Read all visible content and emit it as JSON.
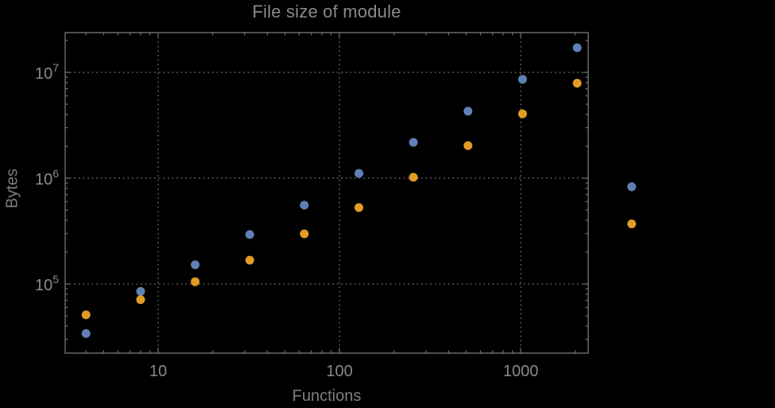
{
  "chart_data": {
    "type": "scatter",
    "title": "File size of module",
    "xlabel": "Functions",
    "ylabel": "Bytes",
    "xscale": "log",
    "yscale": "log",
    "xlim": [
      3.07,
      2357
    ],
    "ylim": [
      22200,
      23760000
    ],
    "grid": true,
    "grid_style": "dotted",
    "legend": false,
    "x_ticks": [
      {
        "value": 10,
        "label": "10"
      },
      {
        "value": 100,
        "label": "100"
      },
      {
        "value": 1000,
        "label": "1000"
      }
    ],
    "y_ticks": [
      {
        "value": 100000,
        "base": "10",
        "exponent": "5"
      },
      {
        "value": 1000000,
        "base": "10",
        "exponent": "6"
      },
      {
        "value": 10000000,
        "base": "10",
        "exponent": "7"
      }
    ],
    "series": [
      {
        "name": "series-blue",
        "color": "#5E81B5",
        "marker": "circle",
        "points": [
          [
            4,
            34000
          ],
          [
            8,
            85000
          ],
          [
            16,
            152000
          ],
          [
            32,
            293000
          ],
          [
            64,
            555000
          ],
          [
            128,
            1110000
          ],
          [
            256,
            2180000
          ],
          [
            512,
            4300000
          ],
          [
            1024,
            8600000
          ],
          [
            2048,
            17100000
          ],
          [
            4096,
            830000
          ]
        ]
      },
      {
        "name": "series-orange",
        "color": "#E19C24",
        "marker": "circle",
        "points": [
          [
            4,
            51000
          ],
          [
            8,
            71000
          ],
          [
            16,
            105000
          ],
          [
            32,
            168000
          ],
          [
            64,
            298000
          ],
          [
            128,
            527000
          ],
          [
            256,
            1020000
          ],
          [
            512,
            2030000
          ],
          [
            1024,
            4060000
          ],
          [
            2048,
            7900000
          ],
          [
            4096,
            370000
          ]
        ]
      }
    ]
  },
  "colors": {
    "background": "#000000",
    "frame": "#6f6f6f",
    "grid": "#747474",
    "tick_label": "#8a8a8a",
    "title": "#8a8a8a",
    "axis_label": "#7e7e7e"
  }
}
